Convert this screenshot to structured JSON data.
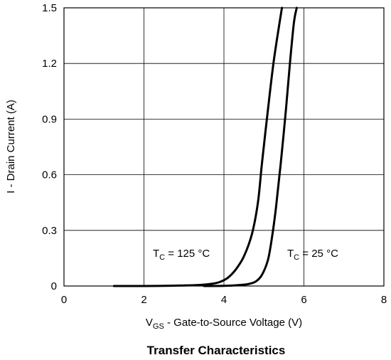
{
  "chart_data": {
    "type": "line",
    "title": "Transfer Characteristics",
    "xlabel": {
      "main": "V",
      "sub": "GS",
      "rest": " - Gate-to-Source Voltage (V)"
    },
    "ylabel": "I  - Drain Current (A)",
    "xlim": [
      0,
      8
    ],
    "ylim": [
      0,
      1.5
    ],
    "xticks": [
      "0",
      "2",
      "4",
      "6",
      "8"
    ],
    "yticks": [
      "0",
      "0.3",
      "0.6",
      "0.9",
      "1.2",
      "1.5"
    ],
    "grid": true,
    "series": [
      {
        "name": "T_C = 125 °C",
        "label": {
          "main": "T",
          "sub": "C",
          "rest": " = 125 °C"
        },
        "color": "#000000",
        "x": [
          1.25,
          2.0,
          2.5,
          3.0,
          3.4,
          3.7,
          3.9,
          4.1,
          4.3,
          4.5,
          4.7,
          4.85,
          4.95,
          5.1,
          5.25,
          5.45
        ],
        "y": [
          0.0,
          0.0,
          0.001,
          0.003,
          0.006,
          0.012,
          0.022,
          0.045,
          0.09,
          0.16,
          0.28,
          0.45,
          0.66,
          0.95,
          1.22,
          1.5
        ]
      },
      {
        "name": "T_C = 25 °C",
        "label": {
          "main": "T",
          "sub": "C",
          "rest": " = 25 °C"
        },
        "color": "#000000",
        "x": [
          3.5,
          4.0,
          4.3,
          4.6,
          4.8,
          4.95,
          5.1,
          5.2,
          5.3,
          5.42,
          5.55,
          5.65,
          5.75,
          5.82
        ],
        "y": [
          0.0,
          0.001,
          0.004,
          0.01,
          0.025,
          0.06,
          0.14,
          0.26,
          0.42,
          0.66,
          0.95,
          1.2,
          1.42,
          1.5
        ]
      }
    ]
  }
}
